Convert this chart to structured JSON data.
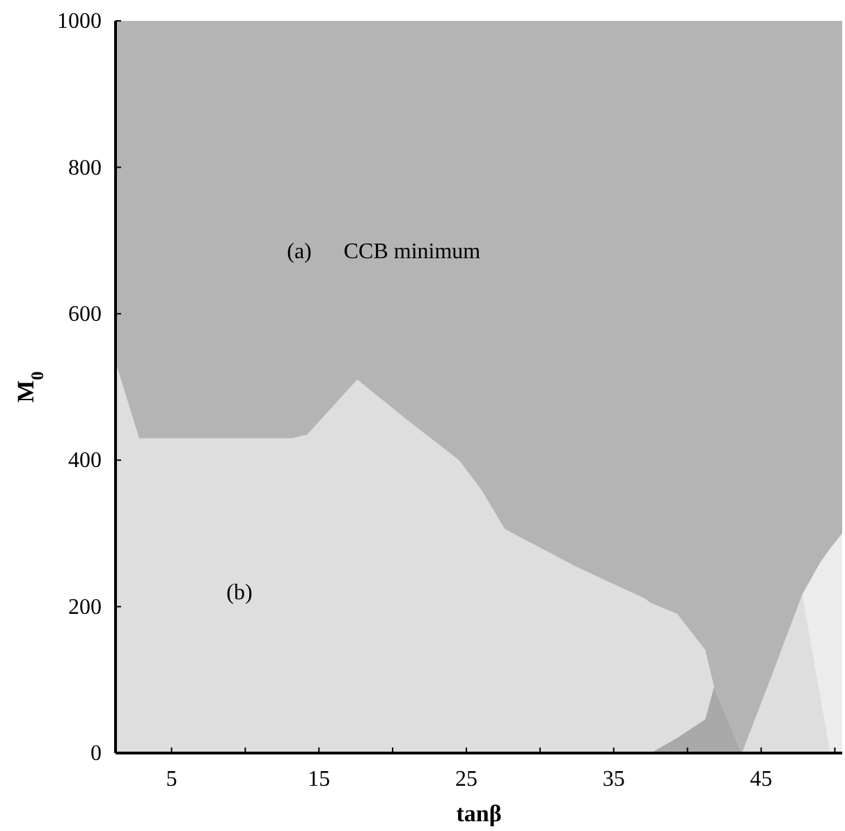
{
  "chart_data": {
    "type": "area",
    "stacked": true,
    "xlabel": "tanβ",
    "ylabel": "M$_{0}$",
    "xlim": [
      1.2,
      50.5
    ],
    "ylim": [
      0,
      1000
    ],
    "xticks": [
      5,
      {
        "value": 10,
        "label": null
      },
      15,
      {
        "value": 20,
        "label": null
      },
      25,
      {
        "value": 30,
        "label": null
      },
      35,
      {
        "value": 40,
        "label": null
      },
      45,
      {
        "value": 50,
        "label": null
      }
    ],
    "yticks": [
      0,
      200,
      400,
      600,
      800,
      1000
    ],
    "x": [
      1.2,
      2.8,
      13.2,
      14.2,
      17.6,
      20.8,
      24.5,
      26,
      27.6,
      32.4,
      37.1,
      37.5,
      39.3,
      41.2,
      41.8,
      43.7,
      45.8,
      47.8,
      49,
      49.7,
      50.5
    ],
    "series": [
      {
        "color": "#a9a9a9",
        "values": [
          0,
          0,
          0,
          0,
          0,
          0,
          0,
          0,
          0,
          0,
          0,
          0,
          21,
          46,
          91,
          0,
          0,
          0,
          0,
          0,
          0
        ]
      },
      {
        "color": "#dedede",
        "values": [
          534,
          430,
          430,
          435,
          510,
          458,
          400,
          360,
          306,
          255,
          211,
          205,
          169,
          95,
          0,
          0,
          110,
          217,
          80,
          0,
          0
        ]
      },
      {
        "color": "#ececec",
        "values": [
          null,
          null,
          null,
          null,
          null,
          null,
          null,
          null,
          null,
          null,
          null,
          null,
          null,
          null,
          null,
          null,
          null,
          0,
          180,
          280,
          300
        ]
      },
      {
        "color": "#b4b4b4",
        "values": [
          466,
          570,
          570,
          565,
          490,
          542,
          600,
          640,
          694,
          745,
          789,
          795,
          810,
          859,
          909,
          1000,
          890,
          783,
          740,
          720,
          700
        ]
      }
    ],
    "annotations": [
      "(a)",
      "CCB minimum",
      "(b)"
    ]
  }
}
